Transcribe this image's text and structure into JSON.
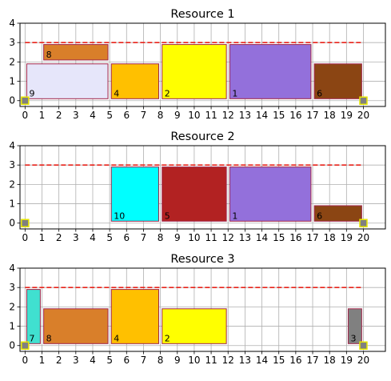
{
  "chart_data": [
    {
      "type": "gantt",
      "title": "Resource 1",
      "xlim": [
        -0.3,
        21.3
      ],
      "ylim": [
        -0.3,
        4
      ],
      "xticks": [
        0,
        1,
        2,
        3,
        4,
        5,
        6,
        7,
        8,
        9,
        10,
        11,
        12,
        13,
        14,
        15,
        16,
        17,
        18,
        19,
        20
      ],
      "yticks": [
        0,
        1,
        2,
        3,
        4
      ],
      "grid": true,
      "capacity": 3,
      "capacity_x": [
        0,
        20
      ],
      "anchors": [
        {
          "x": 0,
          "y": 0
        },
        {
          "x": 20,
          "y": 0
        }
      ],
      "tasks": [
        {
          "label": "9",
          "x0": 0.1,
          "x1": 4.9,
          "y0": 0.1,
          "y1": 1.9,
          "color": "#e6e6fa"
        },
        {
          "label": "8",
          "x0": 1.1,
          "x1": 4.9,
          "y0": 2.1,
          "y1": 2.9,
          "color": "#d97f2a"
        },
        {
          "label": "4",
          "x0": 5.1,
          "x1": 7.9,
          "y0": 0.1,
          "y1": 1.9,
          "color": "#ffc000"
        },
        {
          "label": "2",
          "x0": 8.1,
          "x1": 11.9,
          "y0": 0.1,
          "y1": 2.9,
          "color": "#ffff00"
        },
        {
          "label": "1",
          "x0": 12.1,
          "x1": 16.9,
          "y0": 0.1,
          "y1": 2.9,
          "color": "#9370db"
        },
        {
          "label": "6",
          "x0": 17.1,
          "x1": 19.9,
          "y0": 0.1,
          "y1": 1.9,
          "color": "#8b4513"
        }
      ]
    },
    {
      "type": "gantt",
      "title": "Resource 2",
      "xlim": [
        -0.3,
        21.3
      ],
      "ylim": [
        -0.3,
        4
      ],
      "xticks": [
        0,
        1,
        2,
        3,
        4,
        5,
        6,
        7,
        8,
        9,
        10,
        11,
        12,
        13,
        14,
        15,
        16,
        17,
        18,
        19,
        20
      ],
      "yticks": [
        0,
        1,
        2,
        3,
        4
      ],
      "grid": true,
      "capacity": 3,
      "capacity_x": [
        0,
        20
      ],
      "anchors": [
        {
          "x": 0,
          "y": 0
        },
        {
          "x": 20,
          "y": 0
        }
      ],
      "tasks": [
        {
          "label": "10",
          "x0": 5.1,
          "x1": 7.9,
          "y0": 0.1,
          "y1": 2.9,
          "color": "#00ffff"
        },
        {
          "label": "5",
          "x0": 8.1,
          "x1": 11.9,
          "y0": 0.1,
          "y1": 2.9,
          "color": "#b22222"
        },
        {
          "label": "1",
          "x0": 12.1,
          "x1": 16.9,
          "y0": 0.1,
          "y1": 2.9,
          "color": "#9370db"
        },
        {
          "label": "6",
          "x0": 17.1,
          "x1": 19.9,
          "y0": 0.1,
          "y1": 0.9,
          "color": "#8b4513"
        }
      ]
    },
    {
      "type": "gantt",
      "title": "Resource 3",
      "xlim": [
        -0.3,
        21.3
      ],
      "ylim": [
        -0.3,
        4
      ],
      "xticks": [
        0,
        1,
        2,
        3,
        4,
        5,
        6,
        7,
        8,
        9,
        10,
        11,
        12,
        13,
        14,
        15,
        16,
        17,
        18,
        19,
        20
      ],
      "yticks": [
        0,
        1,
        2,
        3,
        4
      ],
      "grid": true,
      "capacity": 3,
      "capacity_x": [
        0,
        20
      ],
      "anchors": [
        {
          "x": 0,
          "y": 0
        },
        {
          "x": 20,
          "y": 0
        }
      ],
      "tasks": [
        {
          "label": "7",
          "x0": 0.1,
          "x1": 0.9,
          "y0": 0.1,
          "y1": 2.9,
          "color": "#40e0d0"
        },
        {
          "label": "8",
          "x0": 1.1,
          "x1": 4.9,
          "y0": 0.1,
          "y1": 1.9,
          "color": "#d97f2a"
        },
        {
          "label": "4",
          "x0": 5.1,
          "x1": 7.9,
          "y0": 0.1,
          "y1": 2.9,
          "color": "#ffc000"
        },
        {
          "label": "2",
          "x0": 8.1,
          "x1": 11.9,
          "y0": 0.1,
          "y1": 1.9,
          "color": "#ffff00"
        },
        {
          "label": "3",
          "x0": 19.1,
          "x1": 19.9,
          "y0": 0.1,
          "y1": 1.9,
          "color": "#808080"
        }
      ]
    }
  ]
}
